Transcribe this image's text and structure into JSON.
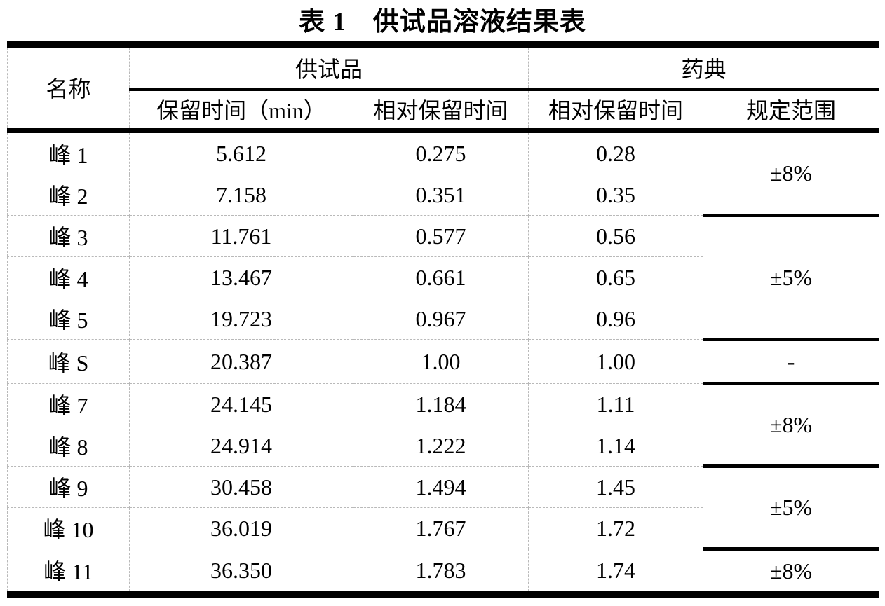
{
  "title": "表 1　供试品溶液结果表",
  "table": {
    "header": {
      "name": "名称",
      "group_sample": "供试品",
      "group_pharmacopoeia": "药典",
      "col_retention_time": "保留时间（min）",
      "col_relative_rt_sample": "相对保留时间",
      "col_relative_rt_pharmacopoeia": "相对保留时间",
      "col_specified_range": "规定范围"
    },
    "rows": [
      {
        "name": "峰 1",
        "rt": "5.612",
        "rrt": "0.275",
        "ph_rrt": "0.28",
        "range": {
          "label": "±8%",
          "rowspan": 2
        }
      },
      {
        "name": "峰 2",
        "rt": "7.158",
        "rrt": "0.351",
        "ph_rrt": "0.35"
      },
      {
        "name": "峰 3",
        "rt": "11.761",
        "rrt": "0.577",
        "ph_rrt": "0.56",
        "range": {
          "label": "±5%",
          "rowspan": 3
        }
      },
      {
        "name": "峰 4",
        "rt": "13.467",
        "rrt": "0.661",
        "ph_rrt": "0.65"
      },
      {
        "name": "峰 5",
        "rt": "19.723",
        "rrt": "0.967",
        "ph_rrt": "0.96"
      },
      {
        "name": "峰 S",
        "rt": "20.387",
        "rrt": "1.00",
        "ph_rrt": "1.00",
        "range": {
          "label": "-",
          "rowspan": 1
        }
      },
      {
        "name": "峰 7",
        "rt": "24.145",
        "rrt": "1.184",
        "ph_rrt": "1.11",
        "range": {
          "label": "±8%",
          "rowspan": 2
        }
      },
      {
        "name": "峰 8",
        "rt": "24.914",
        "rrt": "1.222",
        "ph_rrt": "1.14"
      },
      {
        "name": "峰 9",
        "rt": "30.458",
        "rrt": "1.494",
        "ph_rrt": "1.45",
        "range": {
          "label": "±5%",
          "rowspan": 2
        }
      },
      {
        "name": "峰 10",
        "rt": "36.019",
        "rrt": "1.767",
        "ph_rrt": "1.72"
      },
      {
        "name": "峰 11",
        "rt": "36.350",
        "rrt": "1.783",
        "ph_rrt": "1.74",
        "range": {
          "label": "±8%",
          "rowspan": 1
        }
      }
    ]
  },
  "colors": {
    "text": "#000000",
    "heavy_rule": "#000000",
    "dashed_rule": "#b9b9b9",
    "background": "#ffffff"
  }
}
